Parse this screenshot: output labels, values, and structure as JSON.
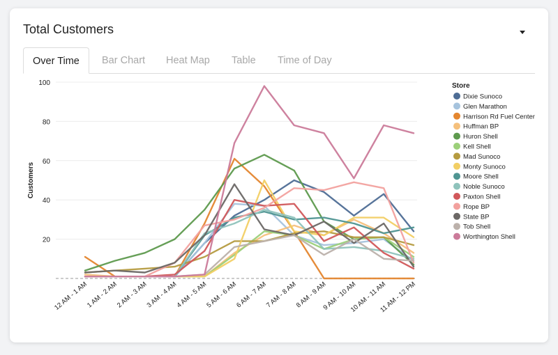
{
  "card": {
    "title": "Total Customers"
  },
  "tabs": [
    {
      "label": "Over Time",
      "active": true
    },
    {
      "label": "Bar Chart",
      "active": false
    },
    {
      "label": "Heat Map",
      "active": false
    },
    {
      "label": "Table",
      "active": false
    },
    {
      "label": "Time of Day",
      "active": false
    }
  ],
  "chart_data": {
    "type": "line",
    "title": "",
    "xlabel": "",
    "ylabel": "Customers",
    "ylim": [
      0,
      100
    ],
    "yticks": [
      20,
      40,
      60,
      80,
      100
    ],
    "grid": true,
    "legend_title": "Store",
    "legend_position": "right",
    "categories": [
      "12 AM - 1 AM",
      "1 AM - 2 AM",
      "2 AM - 3 AM",
      "3 AM - 4 AM",
      "4 AM - 5 AM",
      "5 AM - 6 AM",
      "6 AM - 7 AM",
      "7 AM - 8 AM",
      "8 AM - 9 AM",
      "9 AM - 10 AM",
      "10 AM - 11 AM",
      "11 AM - 12 PM"
    ],
    "series": [
      {
        "name": "Dixie Sunoco",
        "color": "#4e6d95",
        "values": [
          1,
          1,
          1,
          1,
          18,
          32,
          40,
          50,
          44,
          32,
          43,
          24
        ]
      },
      {
        "name": "Glen Marathon",
        "color": "#a6c3dd",
        "values": [
          1,
          1,
          1,
          1,
          18,
          38,
          37,
          22,
          17,
          18,
          20,
          9
        ]
      },
      {
        "name": "Harrison Rd Fuel Center",
        "color": "#e4862f",
        "values": [
          11,
          1,
          1,
          1,
          28,
          61,
          47,
          24,
          0,
          0,
          0,
          0
        ]
      },
      {
        "name": "Huffman BP",
        "color": "#f5c07c",
        "values": [
          2,
          1,
          1,
          1,
          1,
          13,
          22,
          27,
          22,
          30,
          23,
          13
        ]
      },
      {
        "name": "Huron Shell",
        "color": "#5e9a4e",
        "values": [
          4,
          9,
          13,
          20,
          35,
          56,
          63,
          55,
          29,
          20,
          21,
          7
        ]
      },
      {
        "name": "Kell Shell",
        "color": "#9cd07a",
        "values": [
          1,
          1,
          1,
          1,
          1,
          12,
          24,
          22,
          15,
          20,
          21,
          11
        ]
      },
      {
        "name": "Mad Sunoco",
        "color": "#b59b40",
        "values": [
          3,
          4,
          5,
          6,
          11,
          19,
          19,
          23,
          24,
          21,
          21,
          17
        ]
      },
      {
        "name": "Monty Sunoco",
        "color": "#f2cf65",
        "values": [
          1,
          1,
          1,
          1,
          1,
          10,
          50,
          24,
          22,
          31,
          31,
          21
        ]
      },
      {
        "name": "Moore Shell",
        "color": "#4f9592",
        "values": [
          1,
          1,
          1,
          1,
          22,
          31,
          34,
          30,
          31,
          28,
          23,
          26
        ]
      },
      {
        "name": "Noble Sunoco",
        "color": "#8fc3bc",
        "values": [
          1,
          1,
          1,
          1,
          23,
          28,
          35,
          31,
          15,
          16,
          14,
          10
        ]
      },
      {
        "name": "Paxton Shell",
        "color": "#d1585b",
        "values": [
          1,
          1,
          1,
          2,
          14,
          40,
          37,
          38,
          19,
          26,
          13,
          5
        ]
      },
      {
        "name": "Rope BP",
        "color": "#f2a19e",
        "values": [
          1,
          1,
          1,
          8,
          27,
          30,
          36,
          46,
          45,
          49,
          46,
          8
        ]
      },
      {
        "name": "State BP",
        "color": "#6c6866",
        "values": [
          3,
          4,
          3,
          8,
          22,
          48,
          25,
          22,
          29,
          18,
          28,
          6
        ]
      },
      {
        "name": "Tob Shell",
        "color": "#bcb1ab",
        "values": [
          1,
          1,
          1,
          1,
          2,
          16,
          19,
          22,
          12,
          20,
          10,
          9
        ]
      },
      {
        "name": "Worthington Shell",
        "color": "#cb7b9a",
        "values": [
          1,
          1,
          1,
          1,
          2,
          69,
          98,
          78,
          74,
          51,
          78,
          74
        ]
      }
    ]
  }
}
